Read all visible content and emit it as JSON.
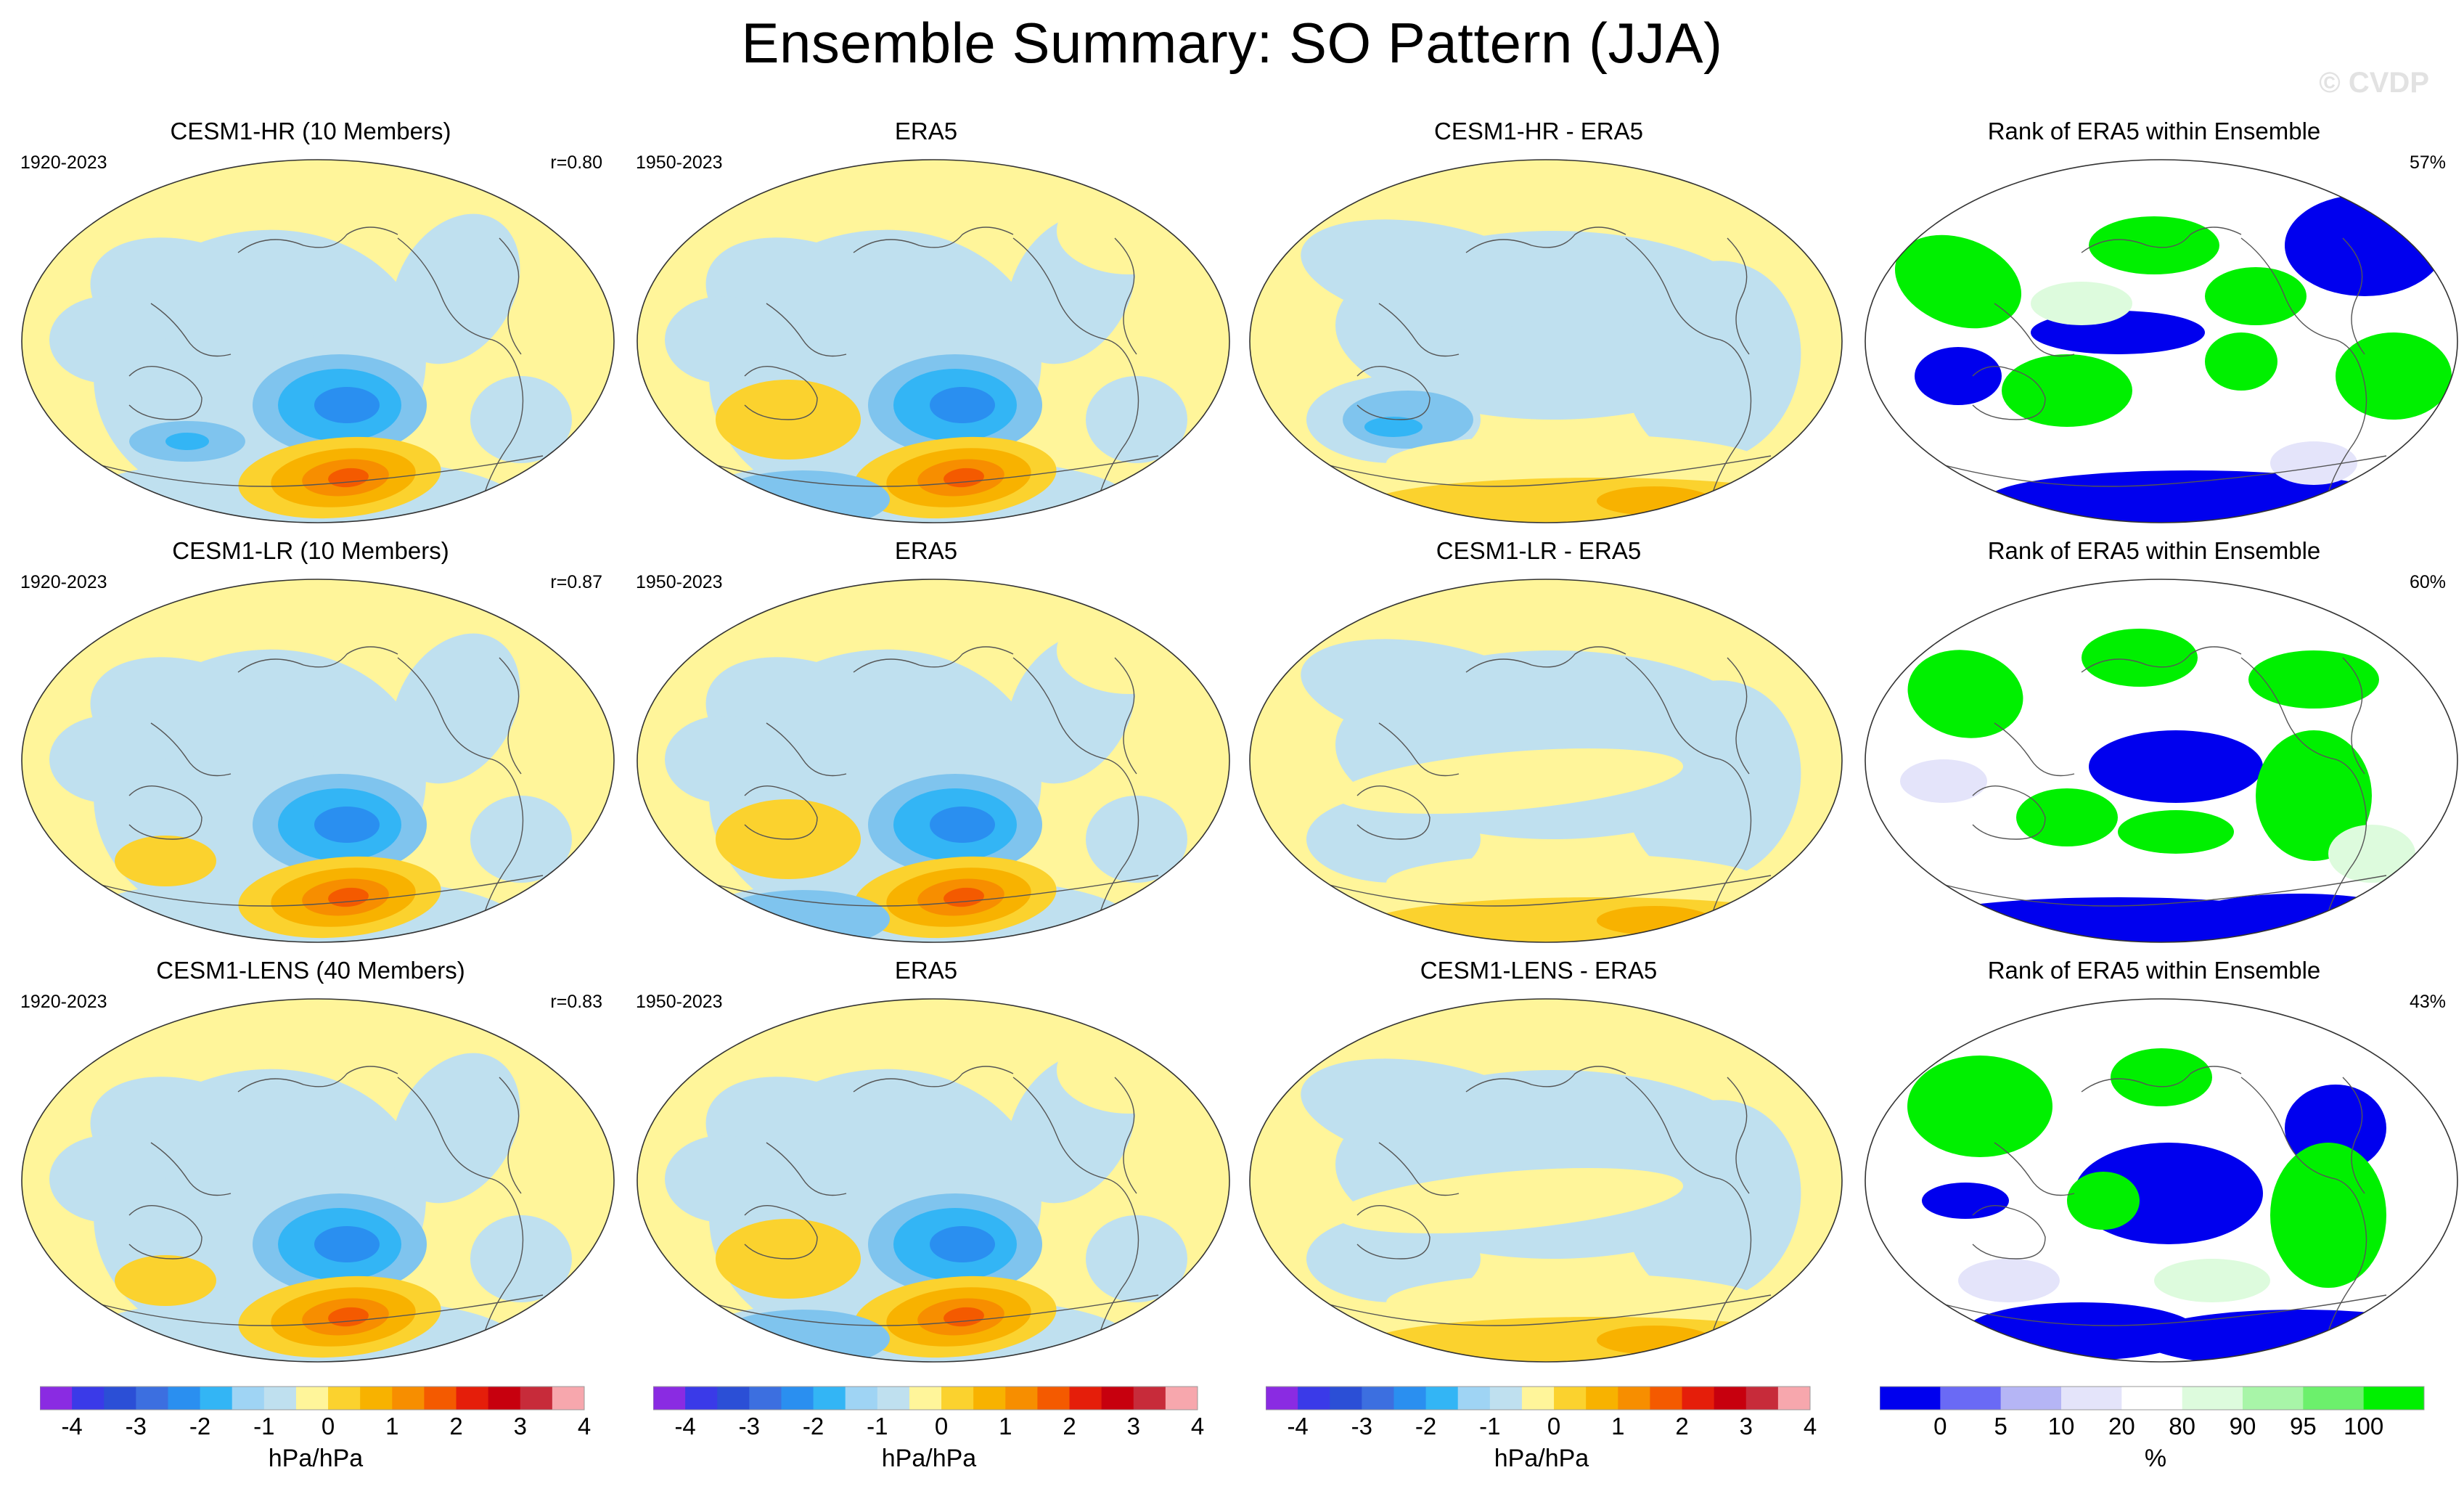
{
  "figure": {
    "title": "Ensemble Summary: SO Pattern (JJA)",
    "watermark": "© CVDP"
  },
  "chart_data": {
    "type": "map-panel-grid",
    "title": "Ensemble Summary: SO Pattern (JJA)",
    "rows": [
      {
        "panels": [
          {
            "title": "CESM1-HR (10 Members)",
            "left": "1920-2023",
            "right": "r=0.80",
            "kind": "pattern"
          },
          {
            "title": "ERA5",
            "left": "1950-2023",
            "right": "",
            "kind": "pattern"
          },
          {
            "title": "CESM1-HR - ERA5",
            "left": "",
            "right": "",
            "kind": "difference"
          },
          {
            "title": "Rank of ERA5 within Ensemble",
            "left": "",
            "right": "57%",
            "kind": "rank"
          }
        ]
      },
      {
        "panels": [
          {
            "title": "CESM1-LR (10 Members)",
            "left": "1920-2023",
            "right": "r=0.87",
            "kind": "pattern"
          },
          {
            "title": "ERA5",
            "left": "1950-2023",
            "right": "",
            "kind": "pattern"
          },
          {
            "title": "CESM1-LR - ERA5",
            "left": "",
            "right": "",
            "kind": "difference"
          },
          {
            "title": "Rank of ERA5 within Ensemble",
            "left": "",
            "right": "60%",
            "kind": "rank"
          }
        ]
      },
      {
        "panels": [
          {
            "title": "CESM1-LENS (40 Members)",
            "left": "1920-2023",
            "right": "r=0.83",
            "kind": "pattern"
          },
          {
            "title": "ERA5",
            "left": "1950-2023",
            "right": "",
            "kind": "pattern"
          },
          {
            "title": "CESM1-LENS - ERA5",
            "left": "",
            "right": "",
            "kind": "difference"
          },
          {
            "title": "Rank of ERA5 within Ensemble",
            "left": "",
            "right": "43%",
            "kind": "rank"
          }
        ]
      }
    ],
    "colorbars": [
      {
        "label": "hPa/hPa",
        "ticks": [
          "-4",
          "-3",
          "-2",
          "-1",
          "0",
          "1",
          "2",
          "3",
          "4"
        ],
        "colors": [
          "#8a2be2",
          "#3a3ae8",
          "#2b4fd6",
          "#3c6fe0",
          "#2a8ff0",
          "#33b5f5",
          "#9fd4f4",
          "#bfe0ef",
          "#fff59a",
          "#fbd22e",
          "#f8b200",
          "#f78e00",
          "#f45a00",
          "#e51e0a",
          "#c7000e",
          "#c72b3a",
          "#f7a7ad"
        ]
      },
      {
        "label": "hPa/hPa",
        "ticks": [
          "-4",
          "-3",
          "-2",
          "-1",
          "0",
          "1",
          "2",
          "3",
          "4"
        ],
        "colors": [
          "#8a2be2",
          "#3a3ae8",
          "#2b4fd6",
          "#3c6fe0",
          "#2a8ff0",
          "#33b5f5",
          "#9fd4f4",
          "#bfe0ef",
          "#fff59a",
          "#fbd22e",
          "#f8b200",
          "#f78e00",
          "#f45a00",
          "#e51e0a",
          "#c7000e",
          "#c72b3a",
          "#f7a7ad"
        ]
      },
      {
        "label": "hPa/hPa",
        "ticks": [
          "-4",
          "-3",
          "-2",
          "-1",
          "0",
          "1",
          "2",
          "3",
          "4"
        ],
        "colors": [
          "#8a2be2",
          "#3a3ae8",
          "#2b4fd6",
          "#3c6fe0",
          "#2a8ff0",
          "#33b5f5",
          "#9fd4f4",
          "#bfe0ef",
          "#fff59a",
          "#fbd22e",
          "#f8b200",
          "#f78e00",
          "#f45a00",
          "#e51e0a",
          "#c7000e",
          "#c72b3a",
          "#f7a7ad"
        ]
      },
      {
        "label": "%",
        "ticks": [
          "0",
          "5",
          "10",
          "20",
          "80",
          "90",
          "95",
          "100"
        ],
        "colors": [
          "#0000ee",
          "#6a6af5",
          "#b5b5f5",
          "#e4e4fa",
          "#ffffff",
          "#ddfbdd",
          "#a8f5a8",
          "#6cf06c",
          "#00f000"
        ]
      }
    ]
  }
}
